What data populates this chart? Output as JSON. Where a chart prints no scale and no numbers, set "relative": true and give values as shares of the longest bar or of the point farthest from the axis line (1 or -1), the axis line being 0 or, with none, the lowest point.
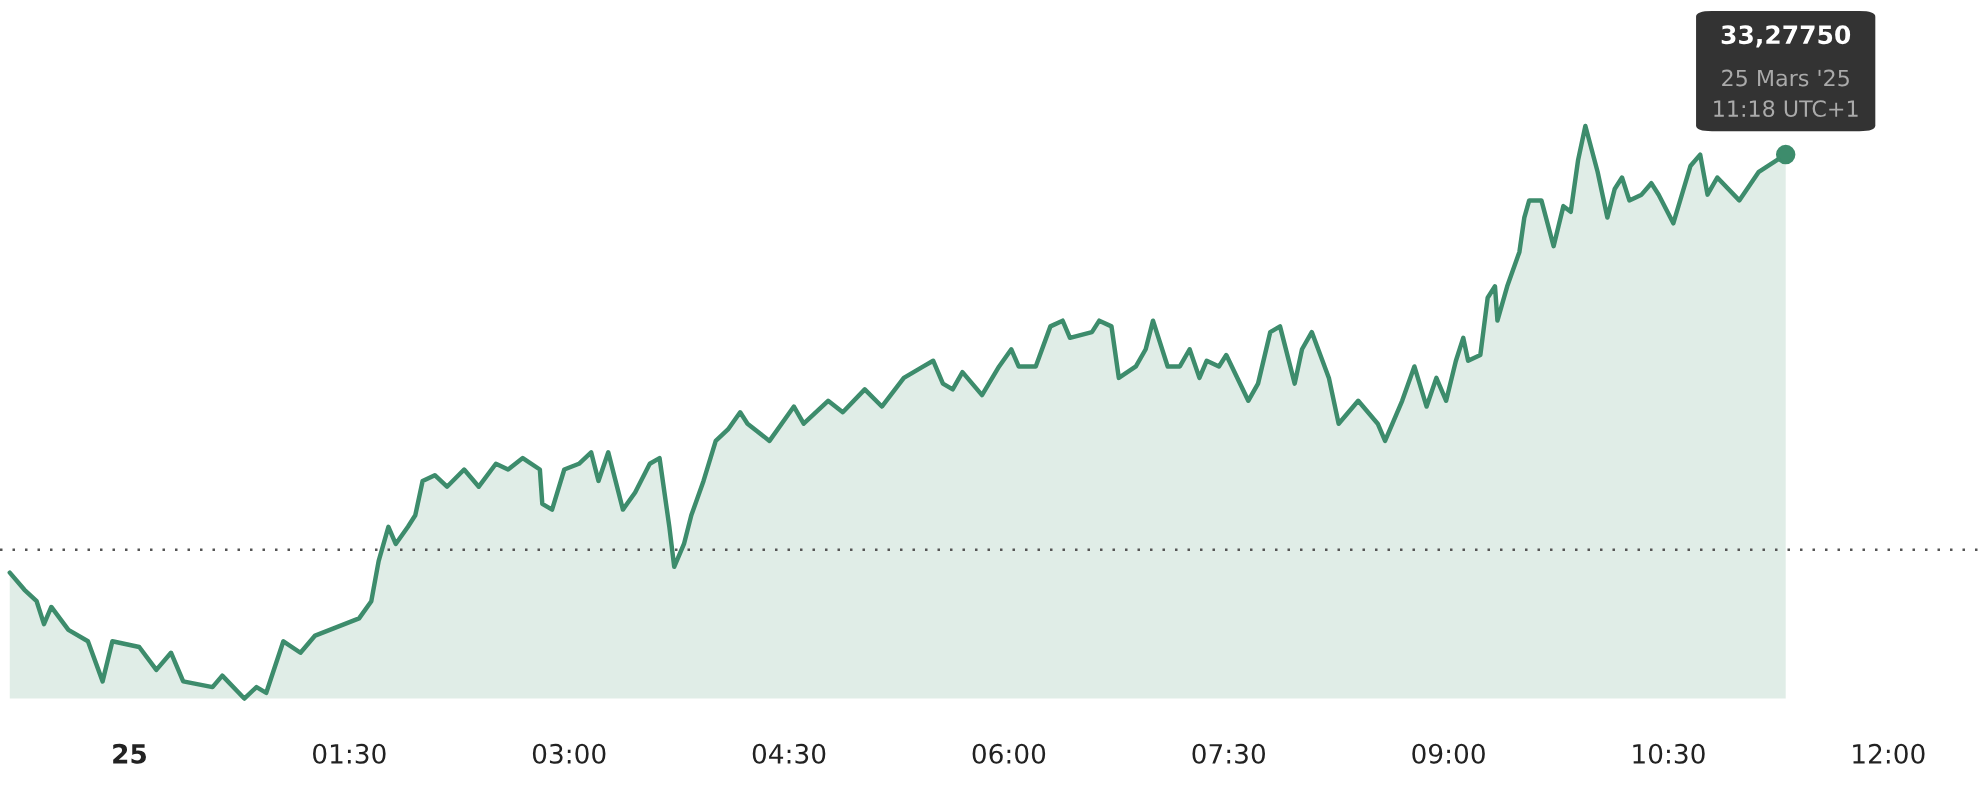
{
  "chart_data": {
    "type": "area",
    "relative": true,
    "x": [
      "2025-03-24T23:11",
      "2025-03-24T23:17",
      "2025-03-24T23:22",
      "2025-03-24T23:25",
      "2025-03-24T23:28",
      "2025-03-24T23:35",
      "2025-03-24T23:43",
      "2025-03-24T23:49",
      "2025-03-24T23:53",
      "2025-03-25T00:04",
      "2025-03-25T00:11",
      "2025-03-25T00:17",
      "2025-03-25T00:22",
      "2025-03-25T00:34",
      "2025-03-25T00:38",
      "2025-03-25T00:47",
      "2025-03-25T00:52",
      "2025-03-25T00:56",
      "2025-03-25T01:03",
      "2025-03-25T01:10",
      "2025-03-25T01:16",
      "2025-03-25T01:28",
      "2025-03-25T01:34",
      "2025-03-25T01:39",
      "2025-03-25T01:42",
      "2025-03-25T01:46",
      "2025-03-25T01:49",
      "2025-03-25T01:54",
      "2025-03-25T01:57",
      "2025-03-25T02:00",
      "2025-03-25T02:05",
      "2025-03-25T02:10",
      "2025-03-25T02:17",
      "2025-03-25T02:23",
      "2025-03-25T02:30",
      "2025-03-25T02:35",
      "2025-03-25T02:41",
      "2025-03-25T02:48",
      "2025-03-25T02:49",
      "2025-03-25T02:53",
      "2025-03-25T02:58",
      "2025-03-25T03:04",
      "2025-03-25T03:09",
      "2025-03-25T03:12",
      "2025-03-25T03:16",
      "2025-03-25T03:22",
      "2025-03-25T03:27",
      "2025-03-25T03:33",
      "2025-03-25T03:37",
      "2025-03-25T03:41",
      "2025-03-25T03:43",
      "2025-03-25T03:47",
      "2025-03-25T03:50",
      "2025-03-25T03:55",
      "2025-03-25T04:00",
      "2025-03-25T04:05",
      "2025-03-25T04:10",
      "2025-03-25T04:13",
      "2025-03-25T04:22",
      "2025-03-25T04:32",
      "2025-03-25T04:36",
      "2025-03-25T04:46",
      "2025-03-25T04:52",
      "2025-03-25T05:01",
      "2025-03-25T05:08",
      "2025-03-25T05:17",
      "2025-03-25T05:25",
      "2025-03-25T05:29",
      "2025-03-25T05:33",
      "2025-03-25T05:37",
      "2025-03-25T05:41",
      "2025-03-25T05:49",
      "2025-03-25T05:56",
      "2025-03-25T06:01",
      "2025-03-25T06:04",
      "2025-03-25T06:11",
      "2025-03-25T06:17",
      "2025-03-25T06:22",
      "2025-03-25T06:25",
      "2025-03-25T06:34",
      "2025-03-25T06:37",
      "2025-03-25T06:42",
      "2025-03-25T06:45",
      "2025-03-25T06:52",
      "2025-03-25T06:56",
      "2025-03-25T06:59",
      "2025-03-25T07:05",
      "2025-03-25T07:10",
      "2025-03-25T07:14",
      "2025-03-25T07:18",
      "2025-03-25T07:21",
      "2025-03-25T07:26",
      "2025-03-25T07:29",
      "2025-03-25T07:38",
      "2025-03-25T07:42",
      "2025-03-25T07:47",
      "2025-03-25T07:51",
      "2025-03-25T07:57",
      "2025-03-25T08:00",
      "2025-03-25T08:04",
      "2025-03-25T08:11",
      "2025-03-25T08:15",
      "2025-03-25T08:23",
      "2025-03-25T08:31",
      "2025-03-25T08:34",
      "2025-03-25T08:41",
      "2025-03-25T08:46",
      "2025-03-25T08:51",
      "2025-03-25T08:55",
      "2025-03-25T08:59",
      "2025-03-25T09:03",
      "2025-03-25T09:06",
      "2025-03-25T09:08",
      "2025-03-25T09:13",
      "2025-03-25T09:16",
      "2025-03-25T09:19",
      "2025-03-25T09:20",
      "2025-03-25T09:24",
      "2025-03-25T09:29",
      "2025-03-25T09:31",
      "2025-03-25T09:33",
      "2025-03-25T09:38",
      "2025-03-25T09:43",
      "2025-03-25T09:47",
      "2025-03-25T09:50",
      "2025-03-25T09:53",
      "2025-03-25T09:56",
      "2025-03-25T10:01",
      "2025-03-25T10:05",
      "2025-03-25T10:08",
      "2025-03-25T10:11",
      "2025-03-25T10:14",
      "2025-03-25T10:19",
      "2025-03-25T10:23",
      "2025-03-25T10:26",
      "2025-03-25T10:32",
      "2025-03-25T10:39",
      "2025-03-25T10:43",
      "2025-03-25T10:46",
      "2025-03-25T10:50",
      "2025-03-25T10:59",
      "2025-03-25T11:07",
      "2025-03-25T11:18"
    ],
    "series": [
      {
        "color": "#3d8c6c",
        "values": [
          0.22,
          0.19,
          0.17,
          0.13,
          0.16,
          0.12,
          0.1,
          0.03,
          0.1,
          0.09,
          0.05,
          0.08,
          0.03,
          0.02,
          0.04,
          0.0,
          0.02,
          0.01,
          0.1,
          0.08,
          0.11,
          0.13,
          0.14,
          0.17,
          0.24,
          0.3,
          0.27,
          0.3,
          0.32,
          0.38,
          0.39,
          0.37,
          0.4,
          0.37,
          0.41,
          0.4,
          0.42,
          0.4,
          0.34,
          0.33,
          0.4,
          0.41,
          0.43,
          0.38,
          0.43,
          0.33,
          0.36,
          0.41,
          0.42,
          0.3,
          0.23,
          0.27,
          0.32,
          0.38,
          0.45,
          0.47,
          0.5,
          0.48,
          0.45,
          0.51,
          0.48,
          0.52,
          0.5,
          0.54,
          0.51,
          0.56,
          0.58,
          0.59,
          0.55,
          0.54,
          0.57,
          0.53,
          0.58,
          0.61,
          0.58,
          0.58,
          0.65,
          0.66,
          0.63,
          0.64,
          0.66,
          0.65,
          0.56,
          0.58,
          0.61,
          0.66,
          0.58,
          0.58,
          0.61,
          0.56,
          0.59,
          0.58,
          0.6,
          0.52,
          0.55,
          0.64,
          0.65,
          0.55,
          0.61,
          0.64,
          0.56,
          0.48,
          0.52,
          0.48,
          0.45,
          0.52,
          0.58,
          0.51,
          0.56,
          0.52,
          0.59,
          0.63,
          0.59,
          0.6,
          0.7,
          0.72,
          0.66,
          0.72,
          0.78,
          0.84,
          0.87,
          0.87,
          0.79,
          0.86,
          0.85,
          0.94,
          1.0,
          0.92,
          0.84,
          0.89,
          0.91,
          0.87,
          0.88,
          0.9,
          0.88,
          0.83,
          0.93,
          0.95,
          0.88,
          0.91,
          0.87,
          0.92,
          0.95
        ]
      }
    ],
    "xlim": [
      "2025-03-24T23:07",
      "2025-03-25T12:40"
    ],
    "xticks": [
      {
        "value": "2025-03-25T00:00",
        "label": "25"
      },
      {
        "value": "2025-03-25T01:30",
        "label": "01:30"
      },
      {
        "value": "2025-03-25T03:00",
        "label": "03:00"
      },
      {
        "value": "2025-03-25T04:30",
        "label": "04:30"
      },
      {
        "value": "2025-03-25T06:00",
        "label": "06:00"
      },
      {
        "value": "2025-03-25T07:30",
        "label": "07:30"
      },
      {
        "value": "2025-03-25T09:00",
        "label": "09:00"
      },
      {
        "value": "2025-03-25T10:30",
        "label": "10:30"
      },
      {
        "value": "2025-03-25T12:00",
        "label": "12:00"
      }
    ],
    "ref_lines": [
      {
        "axis": "y",
        "value": 0.26,
        "line_style": "dotted",
        "color": "#555555"
      }
    ],
    "annotations": [
      "33,27750",
      "25 Mars '25",
      "11:18 UTC+1"
    ],
    "grid": false,
    "legend": false
  }
}
